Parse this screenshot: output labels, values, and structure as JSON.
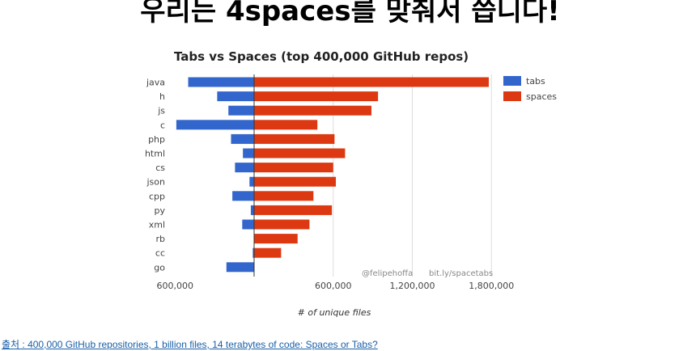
{
  "headline": "우리는 4spaces를 맞춰서 씁니다!",
  "source_link": "출처 : 400,000 GitHub repositories, 1 billion files, 14 terabytes of code: Spaces or Tabs?",
  "colors": {
    "tabs": "#3366cc",
    "spaces": "#dc3912",
    "grid": "#dddddd",
    "axis": "#333333"
  },
  "chart_data": {
    "type": "bar",
    "orientation": "horizontal",
    "title": "Tabs vs Spaces (top 400,000 GitHub repos)",
    "xlabel": "# of unique files",
    "ylabel": "",
    "categories": [
      "java",
      "h",
      "js",
      "c",
      "php",
      "html",
      "cs",
      "json",
      "cpp",
      "py",
      "xml",
      "rb",
      "cc",
      "go"
    ],
    "series": [
      {
        "name": "tabs",
        "values": [
          500000,
          280000,
          195000,
          590000,
          175000,
          85000,
          145000,
          35000,
          165000,
          25000,
          90000,
          0,
          10000,
          210000
        ]
      },
      {
        "name": "spaces",
        "values": [
          1780000,
          940000,
          890000,
          480000,
          610000,
          690000,
          600000,
          620000,
          450000,
          590000,
          420000,
          330000,
          205000,
          0
        ]
      }
    ],
    "xlim": [
      -600000,
      1800000
    ],
    "ticks": [
      -600000,
      600000,
      1200000,
      1800000
    ],
    "tick_labels": [
      "600,000",
      "600,000",
      "1,200,000",
      "1,800,000"
    ],
    "legend": {
      "position": "right",
      "entries": [
        "tabs",
        "spaces"
      ]
    },
    "annotations": [
      "@felipehoffa",
      "bit.ly/spacetabs"
    ],
    "grid": true
  }
}
